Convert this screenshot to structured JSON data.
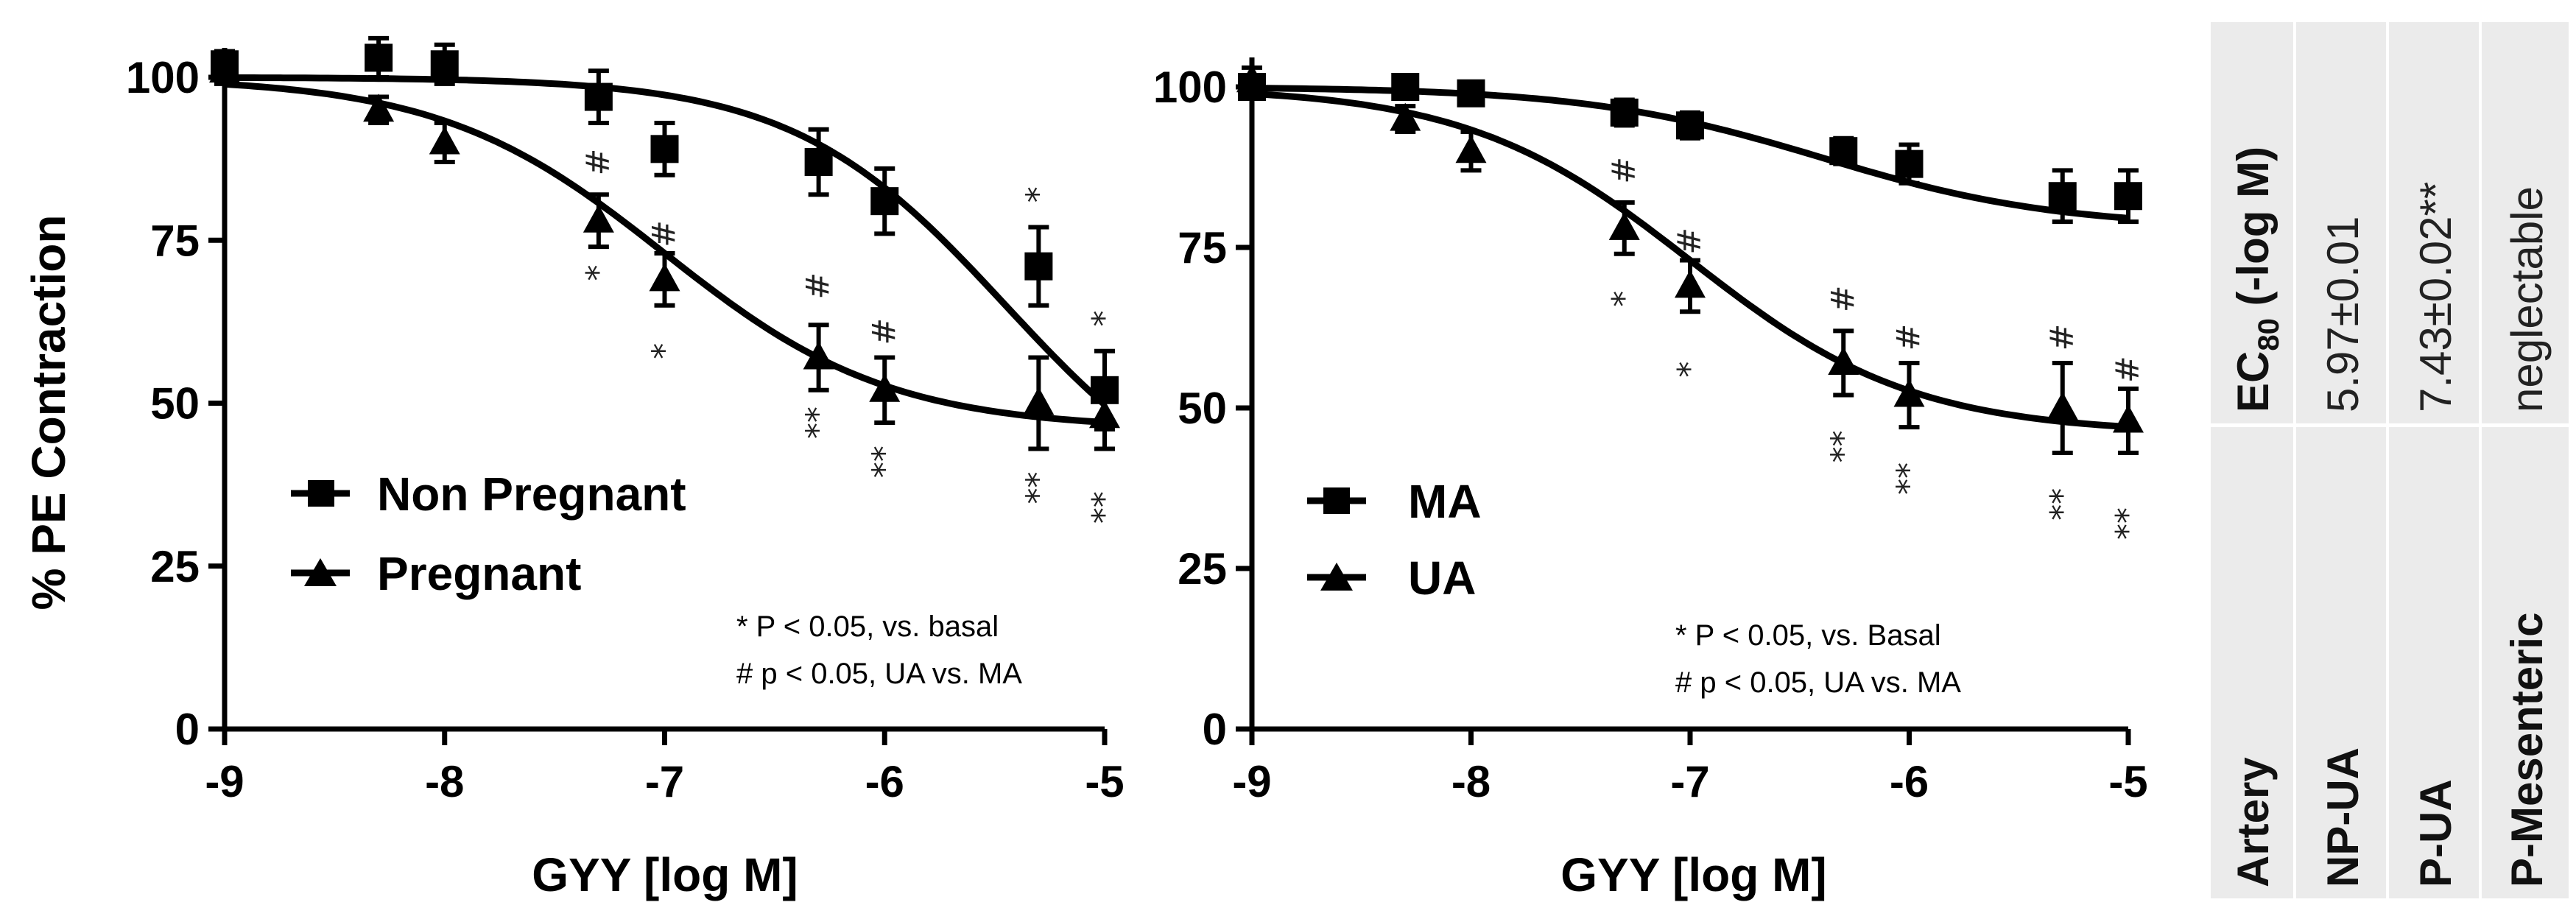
{
  "chart_data": [
    {
      "type": "line",
      "panel": "left",
      "ylabel": "% PE Contraction",
      "xlabel": "GYY [log M]",
      "xlim": [
        -9,
        -5
      ],
      "ylim": [
        0,
        100
      ],
      "xticks": [
        -9,
        -8,
        -7,
        -6,
        -5
      ],
      "yticks": [
        0,
        25,
        50,
        75,
        100
      ],
      "series": [
        {
          "name": "Non Pregnant",
          "marker": "square",
          "x": [
            -9,
            -8.3,
            -8,
            -7.3,
            -7,
            -6.3,
            -6,
            -5.3,
            -5
          ],
          "y": [
            102,
            103,
            102,
            97,
            89,
            87,
            81,
            71,
            52
          ],
          "err": [
            2,
            3,
            3,
            4,
            4,
            5,
            5,
            6,
            6
          ],
          "fit_ec": -5.45,
          "fit_bottom": 30,
          "fit_hill": 0.9
        },
        {
          "name": "Pregnant",
          "marker": "triangle",
          "x": [
            -9,
            -8.3,
            -8,
            -7.3,
            -7,
            -6.3,
            -6,
            -5.3,
            -5
          ],
          "y": [
            101,
            95,
            90,
            78,
            69,
            57,
            52,
            50,
            48
          ],
          "err": [
            2,
            2,
            3,
            4,
            4,
            5,
            5,
            7,
            5
          ],
          "fit_ec": -7.0,
          "fit_bottom": 46,
          "fit_hill": 0.85
        }
      ],
      "sig_marks": [
        {
          "x": -7.3,
          "y": 87,
          "text": "#"
        },
        {
          "x": -7.3,
          "y": 70,
          "text": "*"
        },
        {
          "x": -7.0,
          "y": 76,
          "text": "#"
        },
        {
          "x": -7.0,
          "y": 58,
          "text": "*"
        },
        {
          "x": -6.3,
          "y": 68,
          "text": "#"
        },
        {
          "x": -6.3,
          "y": 47,
          "text": "**"
        },
        {
          "x": -6.0,
          "y": 61,
          "text": "#"
        },
        {
          "x": -6.0,
          "y": 41,
          "text": "**"
        },
        {
          "x": -5.3,
          "y": 82,
          "text": "*"
        },
        {
          "x": -5.3,
          "y": 37,
          "text": "**"
        },
        {
          "x": -5.0,
          "y": 63,
          "text": "*"
        },
        {
          "x": -5.0,
          "y": 34,
          "text": "**"
        }
      ],
      "notes": [
        "* P < 0.05, vs. basal",
        "# p < 0.05, UA vs. MA"
      ]
    },
    {
      "type": "line",
      "panel": "middle",
      "xlabel": "GYY [log M]",
      "xlim": [
        -9,
        -5
      ],
      "ylim": [
        0,
        100
      ],
      "xticks": [
        -9,
        -8,
        -7,
        -6,
        -5
      ],
      "yticks": [
        0,
        25,
        50,
        75,
        100
      ],
      "series": [
        {
          "name": "MA",
          "marker": "square",
          "x": [
            -9,
            -8.3,
            -8,
            -7.3,
            -7,
            -6.3,
            -6,
            -5.3,
            -5
          ],
          "y": [
            100,
            100,
            99,
            96,
            94,
            90,
            88,
            83,
            83
          ],
          "err": [
            1,
            1,
            1,
            2,
            2,
            2,
            3,
            4,
            4
          ],
          "fit_ec": -6.4,
          "fit_bottom": 78,
          "fit_hill": 0.8
        },
        {
          "name": "UA",
          "marker": "triangle",
          "x": [
            -9,
            -8.3,
            -8,
            -7.3,
            -7,
            -6.3,
            -6,
            -5.3,
            -5
          ],
          "y": [
            101,
            95,
            90,
            78,
            69,
            57,
            52,
            50,
            48
          ],
          "err": [
            2,
            2,
            3,
            4,
            4,
            5,
            5,
            7,
            5
          ],
          "fit_ec": -7.0,
          "fit_bottom": 46,
          "fit_hill": 0.85
        }
      ],
      "sig_marks": [
        {
          "x": -7.3,
          "y": 87,
          "text": "#"
        },
        {
          "x": -7.3,
          "y": 67,
          "text": "*"
        },
        {
          "x": -7.0,
          "y": 76,
          "text": "#"
        },
        {
          "x": -7.0,
          "y": 56,
          "text": "*"
        },
        {
          "x": -6.3,
          "y": 67,
          "text": "#"
        },
        {
          "x": -6.3,
          "y": 44,
          "text": "**"
        },
        {
          "x": -6.0,
          "y": 61,
          "text": "#"
        },
        {
          "x": -6.0,
          "y": 39,
          "text": "**"
        },
        {
          "x": -5.3,
          "y": 61,
          "text": "#"
        },
        {
          "x": -5.3,
          "y": 35,
          "text": "**"
        },
        {
          "x": -5.0,
          "y": 56,
          "text": "#"
        },
        {
          "x": -5.0,
          "y": 32,
          "text": "**"
        }
      ],
      "notes": [
        "* P < 0.05, vs. Basal",
        "# p < 0.05, UA vs. MA"
      ]
    }
  ],
  "table": {
    "headers": [
      "Artery",
      "EC",
      "80",
      " (-log M)"
    ],
    "rows": [
      {
        "artery": "NP-UA",
        "ec80": "5.97±0.01"
      },
      {
        "artery": "P-UA",
        "ec80": "7.43±0.02**"
      },
      {
        "artery": "P-Mesenteric",
        "ec80": "neglectable"
      }
    ]
  }
}
